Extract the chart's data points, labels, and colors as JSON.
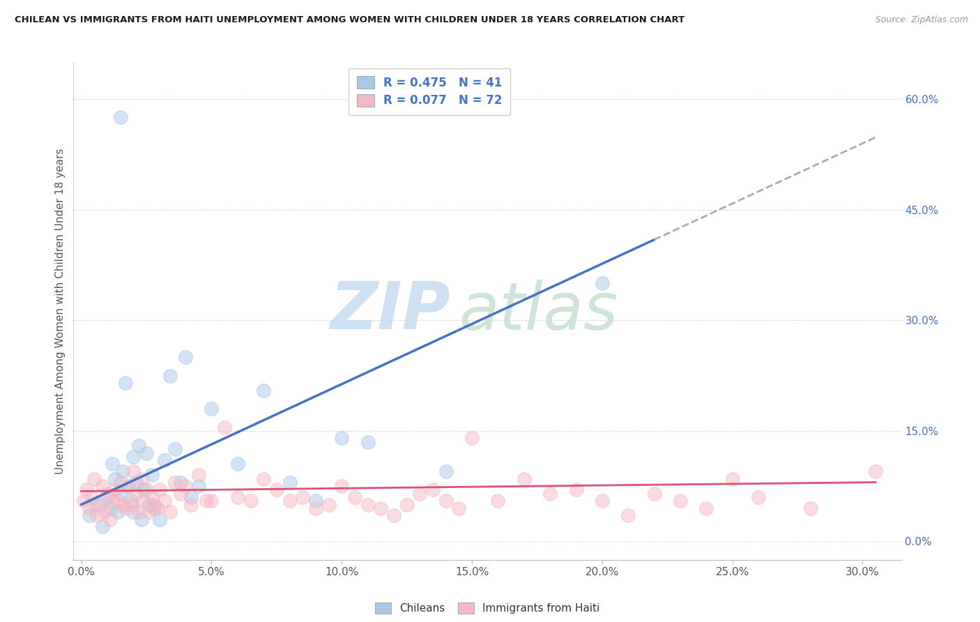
{
  "title": "CHILEAN VS IMMIGRANTS FROM HAITI UNEMPLOYMENT AMONG WOMEN WITH CHILDREN UNDER 18 YEARS CORRELATION CHART",
  "source": "Source: ZipAtlas.com",
  "xlabel_vals": [
    0.0,
    5.0,
    10.0,
    15.0,
    20.0,
    25.0,
    30.0
  ],
  "ylabel_vals": [
    0.0,
    15.0,
    30.0,
    45.0,
    60.0
  ],
  "xlim": [
    -0.3,
    31.5
  ],
  "ylim": [
    -2.5,
    65.0
  ],
  "legend_R1": "R = 0.475",
  "legend_N1": "N = 41",
  "legend_R2": "R = 0.077",
  "legend_N2": "N = 72",
  "color_chilean": "#a8c8e8",
  "color_haiti": "#f4b8c4",
  "trendline_color_chilean": "#4472c4",
  "trendline_color_haiti": "#e05070",
  "dash_color": "#aaaaaa",
  "ylabel": "Unemployment Among Women with Children Under 18 years",
  "legend_label_1": "Chileans",
  "legend_label_2": "Immigrants from Haiti",
  "grid_color": "#dddddd",
  "legend_text_color": "#4472c4",
  "ytick_color": "#4472c4",
  "xtick_color": "#555555",
  "title_color": "#1a1a1a",
  "source_color": "#999999",
  "ylabel_color": "#555555",
  "watermark_zip_color": "#c5dcf0",
  "watermark_atlas_color": "#c5e0d0",
  "chilean_x": [
    0.3,
    0.6,
    0.8,
    1.0,
    1.1,
    1.2,
    1.3,
    1.4,
    1.5,
    1.6,
    1.7,
    1.8,
    1.9,
    2.0,
    2.0,
    2.1,
    2.2,
    2.3,
    2.4,
    2.5,
    2.6,
    2.7,
    2.8,
    3.0,
    3.2,
    3.4,
    3.6,
    3.8,
    4.0,
    4.2,
    4.5,
    5.0,
    6.0,
    7.0,
    8.0,
    9.0,
    10.0,
    11.0,
    14.0,
    20.0,
    1.5
  ],
  "chilean_y": [
    3.5,
    5.0,
    2.0,
    6.0,
    4.5,
    10.5,
    8.5,
    4.0,
    6.5,
    9.5,
    21.5,
    7.5,
    5.5,
    11.5,
    4.0,
    8.0,
    13.0,
    3.0,
    7.0,
    12.0,
    5.0,
    9.0,
    4.5,
    3.0,
    11.0,
    22.5,
    12.5,
    8.0,
    25.0,
    6.0,
    7.5,
    18.0,
    10.5,
    20.5,
    8.0,
    5.5,
    14.0,
    13.5,
    9.5,
    35.0,
    57.5
  ],
  "haiti_x": [
    0.1,
    0.2,
    0.3,
    0.4,
    0.5,
    0.6,
    0.7,
    0.8,
    0.9,
    1.0,
    1.1,
    1.2,
    1.3,
    1.4,
    1.5,
    1.6,
    1.7,
    1.8,
    1.9,
    2.0,
    2.1,
    2.2,
    2.3,
    2.4,
    2.5,
    2.6,
    2.7,
    2.8,
    2.9,
    3.0,
    3.2,
    3.4,
    3.6,
    3.8,
    4.0,
    4.2,
    4.5,
    4.8,
    5.0,
    5.5,
    6.0,
    6.5,
    7.0,
    7.5,
    8.0,
    8.5,
    9.0,
    9.5,
    10.0,
    10.5,
    11.0,
    11.5,
    12.0,
    12.5,
    13.0,
    13.5,
    14.0,
    14.5,
    15.0,
    16.0,
    17.0,
    18.0,
    19.0,
    20.0,
    21.0,
    22.0,
    23.0,
    24.0,
    25.0,
    26.0,
    28.0,
    30.5
  ],
  "haiti_y": [
    5.5,
    7.0,
    4.5,
    6.0,
    8.5,
    3.5,
    5.0,
    7.5,
    4.0,
    6.5,
    3.0,
    5.5,
    7.0,
    5.5,
    8.0,
    5.0,
    4.5,
    7.5,
    5.0,
    9.5,
    6.5,
    4.0,
    8.5,
    5.5,
    7.0,
    4.0,
    6.0,
    5.0,
    4.5,
    7.0,
    5.5,
    4.0,
    8.0,
    6.5,
    7.5,
    5.0,
    9.0,
    5.5,
    5.5,
    15.5,
    6.0,
    5.5,
    8.5,
    7.0,
    5.5,
    6.0,
    4.5,
    5.0,
    7.5,
    6.0,
    5.0,
    4.5,
    3.5,
    5.0,
    6.5,
    7.0,
    5.5,
    4.5,
    14.0,
    5.5,
    8.5,
    6.5,
    7.0,
    5.5,
    3.5,
    6.5,
    5.5,
    4.5,
    8.5,
    6.0,
    4.5,
    9.5
  ],
  "trendline_ch_x0": 0.0,
  "trendline_ch_y0": 5.0,
  "trendline_ch_slope": 1.633,
  "trendline_ht_x0": 0.0,
  "trendline_ht_y0": 6.8,
  "trendline_ht_slope": 0.04,
  "solid_end_x": 22.0,
  "dash_end_x": 30.5
}
